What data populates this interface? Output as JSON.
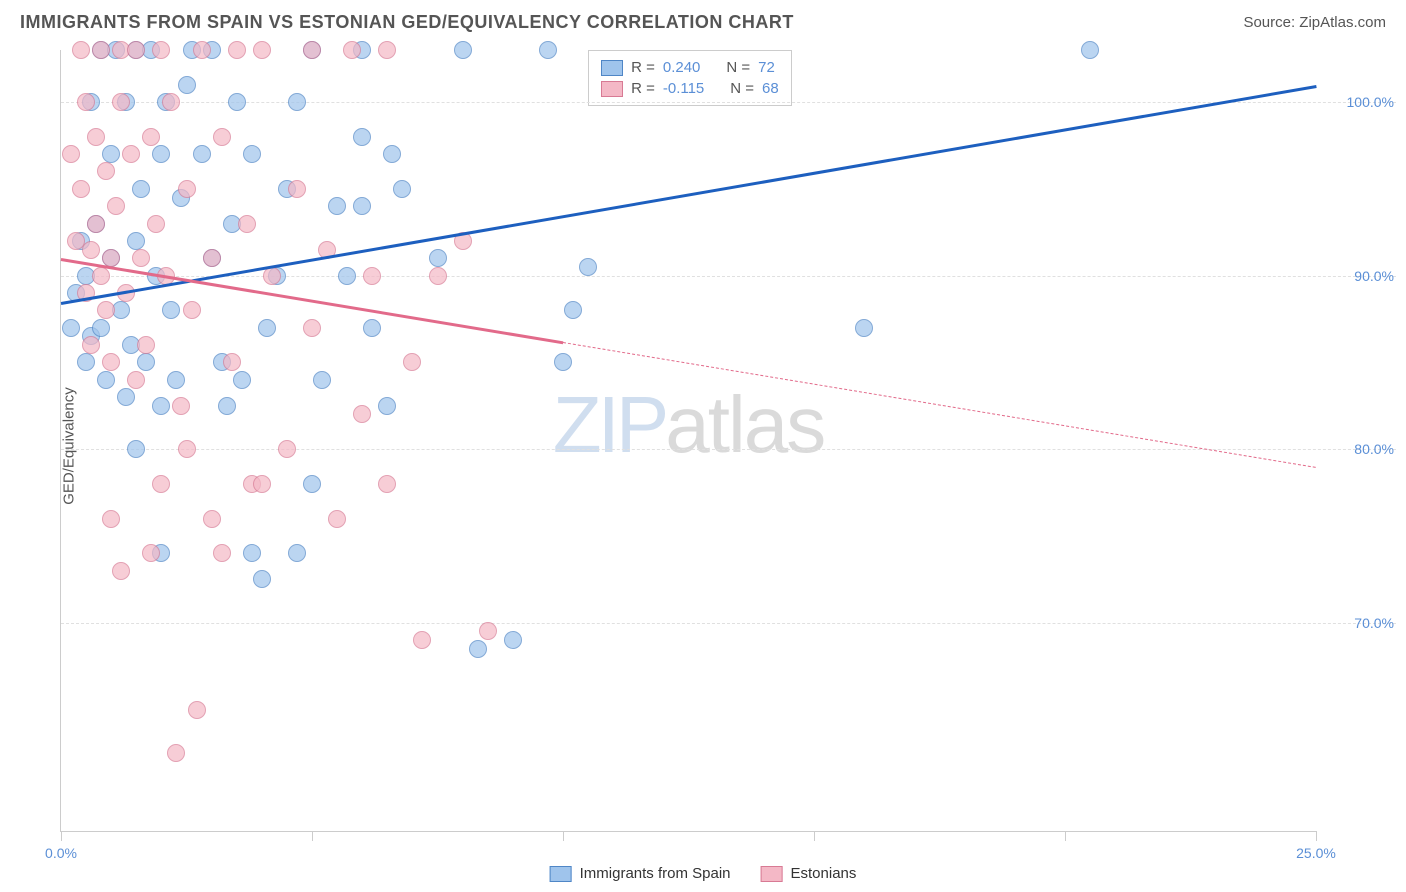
{
  "header": {
    "title": "IMMIGRANTS FROM SPAIN VS ESTONIAN GED/EQUIVALENCY CORRELATION CHART",
    "source": "Source: ZipAtlas.com"
  },
  "chart": {
    "type": "scatter",
    "ylabel": "GED/Equivalency",
    "x_domain": [
      0,
      25
    ],
    "y_domain": [
      58,
      103
    ],
    "y_gridlines": [
      70,
      80,
      90,
      100
    ],
    "y_tick_labels": [
      "70.0%",
      "80.0%",
      "90.0%",
      "100.0%"
    ],
    "x_tick_positions": [
      0,
      5,
      10,
      15,
      20,
      25
    ],
    "x_tick_labels": {
      "0": "0.0%",
      "25": "25.0%"
    },
    "background_color": "#ffffff",
    "grid_color": "#e0e0e0",
    "axis_color": "#cccccc",
    "marker_radius": 9,
    "marker_fill_opacity": 0.35,
    "marker_stroke_width": 1.2,
    "series": [
      {
        "name": "Immigrants from Spain",
        "fill_color": "#9fc4ec",
        "stroke_color": "#4f86c6",
        "line_color": "#1d5fbf",
        "r_label": "R = ",
        "r_value": "0.240",
        "n_label": "N = ",
        "n_value": "72",
        "regression": {
          "x1": 0,
          "y1": 88.5,
          "x2": 25,
          "y2": 101,
          "solid_until_x": 25
        },
        "points": [
          [
            0.2,
            87
          ],
          [
            0.3,
            89
          ],
          [
            0.4,
            92
          ],
          [
            0.5,
            85
          ],
          [
            0.5,
            90
          ],
          [
            0.6,
            100
          ],
          [
            0.6,
            86.5
          ],
          [
            0.7,
            93
          ],
          [
            0.8,
            87
          ],
          [
            0.8,
            103
          ],
          [
            0.9,
            84
          ],
          [
            1.0,
            91
          ],
          [
            1.0,
            97
          ],
          [
            1.1,
            103
          ],
          [
            1.2,
            88
          ],
          [
            1.3,
            83
          ],
          [
            1.3,
            100
          ],
          [
            1.4,
            86
          ],
          [
            1.5,
            92
          ],
          [
            1.5,
            103
          ],
          [
            1.6,
            95
          ],
          [
            1.7,
            85
          ],
          [
            1.8,
            103
          ],
          [
            1.9,
            90
          ],
          [
            2.0,
            97
          ],
          [
            2.0,
            82.5
          ],
          [
            2.1,
            100
          ],
          [
            2.2,
            88
          ],
          [
            2.3,
            84
          ],
          [
            2.4,
            94.5
          ],
          [
            2.5,
            101
          ],
          [
            2.6,
            103
          ],
          [
            2.8,
            97
          ],
          [
            3.0,
            103
          ],
          [
            3.0,
            91
          ],
          [
            3.2,
            85
          ],
          [
            3.3,
            82.5
          ],
          [
            3.4,
            93
          ],
          [
            3.5,
            100
          ],
          [
            3.6,
            84
          ],
          [
            3.8,
            97
          ],
          [
            4.0,
            72.5
          ],
          [
            4.1,
            87
          ],
          [
            4.3,
            90
          ],
          [
            4.5,
            95
          ],
          [
            4.7,
            100
          ],
          [
            5.0,
            103
          ],
          [
            5.0,
            78
          ],
          [
            5.2,
            84
          ],
          [
            5.5,
            94
          ],
          [
            5.7,
            90
          ],
          [
            6.0,
            103
          ],
          [
            6.0,
            98
          ],
          [
            6.0,
            94
          ],
          [
            6.2,
            87
          ],
          [
            6.5,
            82.5
          ],
          [
            6.6,
            97
          ],
          [
            6.8,
            95
          ],
          [
            7.5,
            91
          ],
          [
            8.0,
            103
          ],
          [
            8.3,
            68.5
          ],
          [
            9.0,
            69
          ],
          [
            9.7,
            103
          ],
          [
            10.0,
            85
          ],
          [
            10.2,
            88
          ],
          [
            10.5,
            90.5
          ],
          [
            16.0,
            87
          ],
          [
            20.5,
            103
          ],
          [
            2.0,
            74
          ],
          [
            1.5,
            80
          ],
          [
            3.8,
            74
          ],
          [
            4.7,
            74
          ]
        ]
      },
      {
        "name": "Estonians",
        "fill_color": "#f4b8c6",
        "stroke_color": "#d87a94",
        "line_color": "#e26a8a",
        "r_label": "R = ",
        "r_value": "-0.115",
        "n_label": "N = ",
        "n_value": "68",
        "regression": {
          "x1": 0,
          "y1": 91,
          "x2": 25,
          "y2": 79,
          "solid_until_x": 10
        },
        "points": [
          [
            0.2,
            97
          ],
          [
            0.3,
            92
          ],
          [
            0.4,
            103
          ],
          [
            0.4,
            95
          ],
          [
            0.5,
            89
          ],
          [
            0.5,
            100
          ],
          [
            0.6,
            91.5
          ],
          [
            0.6,
            86
          ],
          [
            0.7,
            93
          ],
          [
            0.7,
            98
          ],
          [
            0.8,
            90
          ],
          [
            0.8,
            103
          ],
          [
            0.9,
            88
          ],
          [
            0.9,
            96
          ],
          [
            1.0,
            91
          ],
          [
            1.0,
            85
          ],
          [
            1.1,
            94
          ],
          [
            1.2,
            100
          ],
          [
            1.2,
            103
          ],
          [
            1.3,
            89
          ],
          [
            1.4,
            97
          ],
          [
            1.5,
            84
          ],
          [
            1.5,
            103
          ],
          [
            1.6,
            91
          ],
          [
            1.7,
            86
          ],
          [
            1.8,
            98
          ],
          [
            1.9,
            93
          ],
          [
            2.0,
            78
          ],
          [
            2.0,
            103
          ],
          [
            2.1,
            90
          ],
          [
            2.2,
            100
          ],
          [
            2.3,
            62.5
          ],
          [
            2.4,
            82.5
          ],
          [
            2.5,
            95
          ],
          [
            2.6,
            88
          ],
          [
            2.7,
            65
          ],
          [
            2.8,
            103
          ],
          [
            3.0,
            76
          ],
          [
            3.0,
            91
          ],
          [
            3.2,
            98
          ],
          [
            3.4,
            85
          ],
          [
            3.5,
            103
          ],
          [
            3.7,
            93
          ],
          [
            3.8,
            78
          ],
          [
            4.0,
            103
          ],
          [
            4.2,
            90
          ],
          [
            4.5,
            80
          ],
          [
            4.7,
            95
          ],
          [
            5.0,
            103
          ],
          [
            5.0,
            87
          ],
          [
            5.3,
            91.5
          ],
          [
            5.5,
            76
          ],
          [
            5.8,
            103
          ],
          [
            6.0,
            82
          ],
          [
            6.2,
            90
          ],
          [
            6.5,
            78
          ],
          [
            7.0,
            85
          ],
          [
            7.2,
            69
          ],
          [
            7.5,
            90
          ],
          [
            8.0,
            92
          ],
          [
            8.5,
            69.5
          ],
          [
            1.0,
            76
          ],
          [
            1.2,
            73
          ],
          [
            1.8,
            74
          ],
          [
            2.5,
            80
          ],
          [
            3.2,
            74
          ],
          [
            4.0,
            78
          ],
          [
            6.5,
            103
          ]
        ]
      }
    ],
    "watermark": {
      "part1": "ZIP",
      "part2": "atlas"
    }
  },
  "bottom_legend": {
    "items": [
      {
        "label": "Immigrants from Spain",
        "fill": "#9fc4ec",
        "stroke": "#4f86c6"
      },
      {
        "label": "Estonians",
        "fill": "#f4b8c6",
        "stroke": "#d87a94"
      }
    ]
  }
}
